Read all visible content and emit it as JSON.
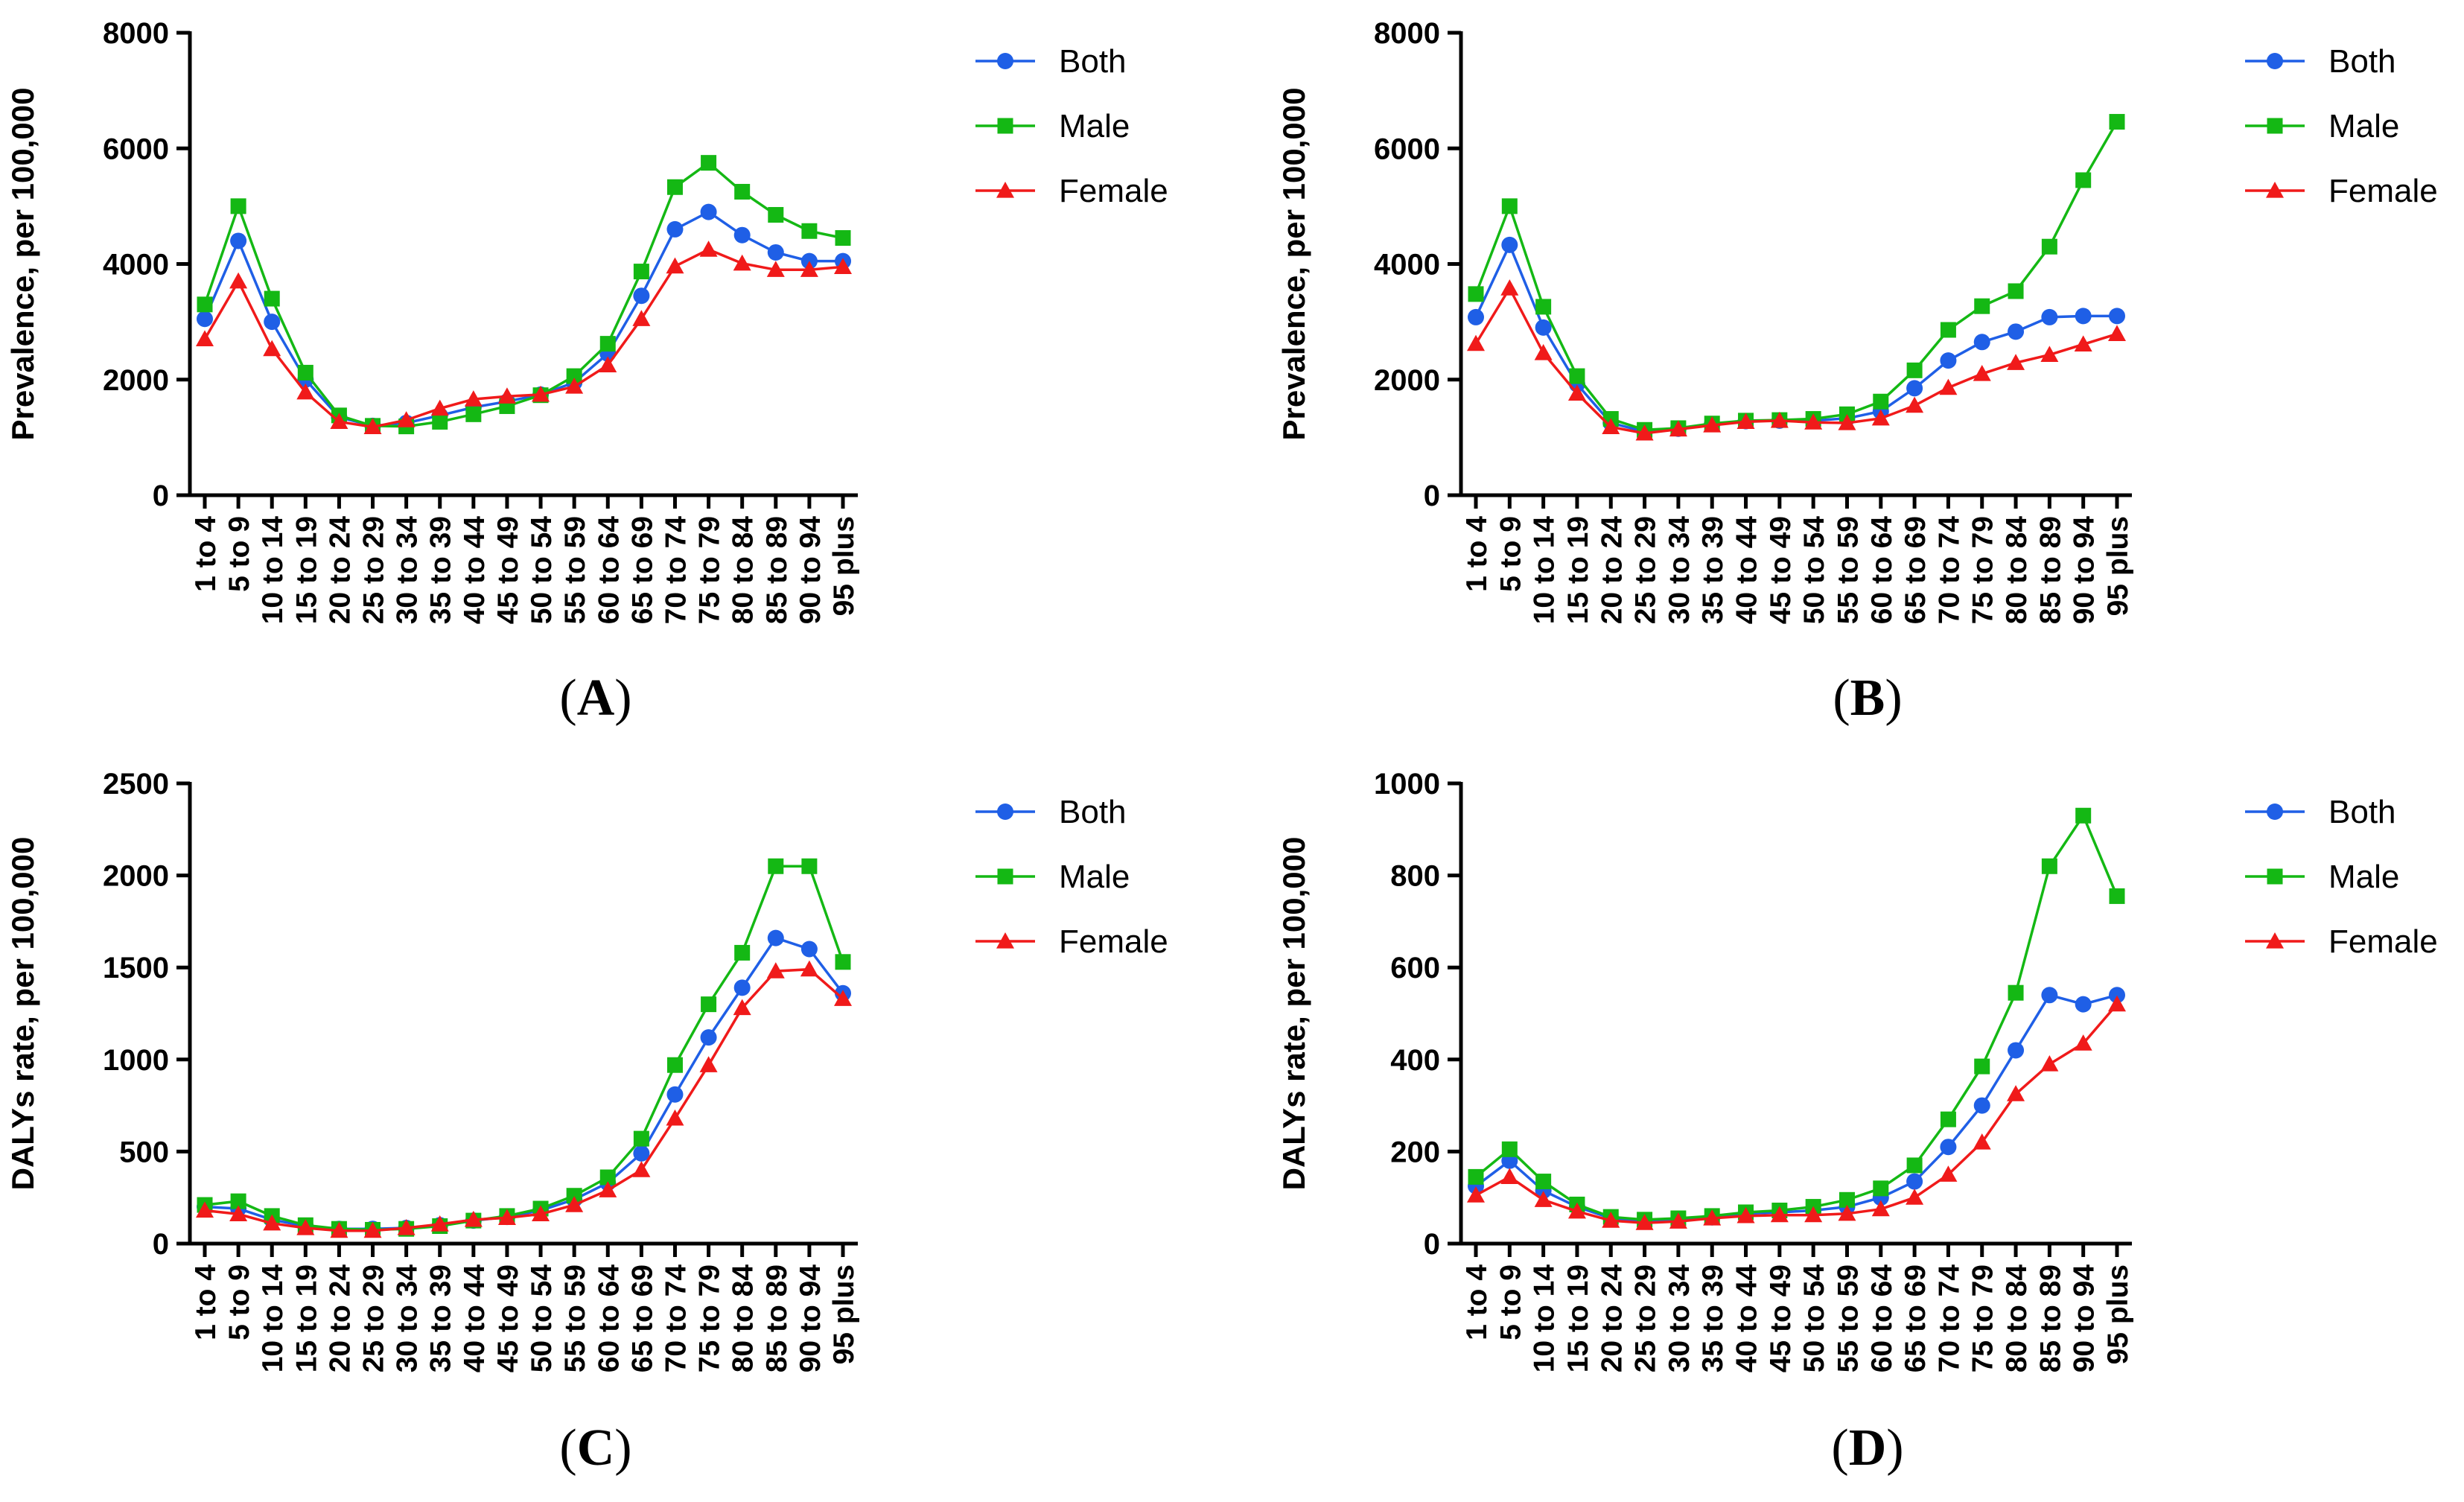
{
  "chart_data": [
    {
      "type": "line",
      "panel": "A",
      "ylabel": "Prevalence, per 100,000",
      "ylim": [
        0,
        8000
      ],
      "yticks": [
        0,
        2000,
        4000,
        6000,
        8000
      ],
      "legend_position": "right",
      "categories": [
        "1 to 4",
        "5 to 9",
        "10 to 14",
        "15 to 19",
        "20 to 24",
        "25 to 29",
        "30 to 34",
        "35 to 39",
        "40 to 44",
        "45 to 49",
        "50 to 54",
        "55 to 59",
        "60 to 64",
        "65 to 69",
        "70 to 74",
        "75 to 79",
        "80 to 84",
        "85 to 89",
        "90 to 94",
        "95 plus"
      ],
      "series": [
        {
          "name": "Both",
          "color": "#1f5fe6",
          "marker": "circle",
          "values": [
            3050,
            4400,
            3000,
            2000,
            1350,
            1200,
            1250,
            1380,
            1520,
            1620,
            1740,
            1950,
            2450,
            3450,
            4600,
            4900,
            4500,
            4200,
            4050,
            4050
          ]
        },
        {
          "name": "Male",
          "color": "#14b814",
          "marker": "square",
          "values": [
            3300,
            5000,
            3400,
            2120,
            1380,
            1200,
            1190,
            1270,
            1400,
            1540,
            1730,
            2060,
            2620,
            3870,
            5330,
            5750,
            5250,
            4850,
            4570,
            4450
          ]
        },
        {
          "name": "Female",
          "color": "#f01a1a",
          "marker": "triangle",
          "values": [
            2700,
            3700,
            2530,
            1780,
            1270,
            1180,
            1300,
            1500,
            1660,
            1710,
            1740,
            1880,
            2250,
            3050,
            3960,
            4250,
            4010,
            3900,
            3900,
            3950
          ]
        }
      ]
    },
    {
      "type": "line",
      "panel": "B",
      "ylabel": "Prevalence, per 100,000",
      "ylim": [
        0,
        8000
      ],
      "yticks": [
        0,
        2000,
        4000,
        6000,
        8000
      ],
      "legend_position": "right",
      "categories": [
        "1 to 4",
        "5 to 9",
        "10 to 14",
        "15 to 19",
        "20 to 24",
        "25 to 29",
        "30 to 34",
        "35 to 39",
        "40 to 44",
        "45 to 49",
        "50 to 54",
        "55 to 59",
        "60 to 64",
        "65 to 69",
        "70 to 74",
        "75 to 79",
        "80 to 84",
        "85 to 89",
        "90 to 94",
        "95 plus"
      ],
      "series": [
        {
          "name": "Both",
          "color": "#1f5fe6",
          "marker": "circle",
          "values": [
            3080,
            4330,
            2900,
            1920,
            1250,
            1100,
            1150,
            1230,
            1280,
            1290,
            1290,
            1330,
            1450,
            1850,
            2330,
            2650,
            2830,
            3080,
            3100,
            3100
          ]
        },
        {
          "name": "Male",
          "color": "#14b814",
          "marker": "square",
          "values": [
            3480,
            5000,
            3260,
            2060,
            1320,
            1130,
            1160,
            1240,
            1290,
            1300,
            1320,
            1400,
            1620,
            2160,
            2860,
            3270,
            3530,
            4300,
            5450,
            6460
          ]
        },
        {
          "name": "Female",
          "color": "#f01a1a",
          "marker": "triangle",
          "values": [
            2620,
            3580,
            2460,
            1760,
            1180,
            1070,
            1140,
            1210,
            1270,
            1290,
            1260,
            1250,
            1330,
            1550,
            1860,
            2100,
            2290,
            2430,
            2610,
            2790
          ]
        }
      ]
    },
    {
      "type": "line",
      "panel": "C",
      "ylabel": "DALYs rate, per 100,000",
      "ylim": [
        0,
        2500
      ],
      "yticks": [
        0,
        500,
        1000,
        1500,
        2000,
        2500
      ],
      "legend_position": "right",
      "categories": [
        "1 to 4",
        "5 to 9",
        "10 to 14",
        "15 to 19",
        "20 to 24",
        "25 to 29",
        "30 to 34",
        "35 to 39",
        "40 to 44",
        "45 to 49",
        "50 to 54",
        "55 to 59",
        "60 to 64",
        "65 to 69",
        "70 to 74",
        "75 to 79",
        "80 to 84",
        "85 to 89",
        "90 to 94",
        "95 plus"
      ],
      "series": [
        {
          "name": "Both",
          "color": "#1f5fe6",
          "marker": "circle",
          "values": [
            200,
            190,
            130,
            95,
            80,
            80,
            85,
            100,
            125,
            145,
            180,
            240,
            330,
            490,
            810,
            1120,
            1390,
            1660,
            1600,
            1360
          ]
        },
        {
          "name": "Male",
          "color": "#14b814",
          "marker": "square",
          "values": [
            210,
            230,
            150,
            100,
            80,
            75,
            80,
            95,
            125,
            150,
            190,
            260,
            360,
            570,
            970,
            1300,
            1580,
            2050,
            2050,
            1530
          ]
        },
        {
          "name": "Female",
          "color": "#f01a1a",
          "marker": "triangle",
          "values": [
            180,
            160,
            110,
            85,
            70,
            70,
            85,
            105,
            130,
            140,
            160,
            210,
            290,
            400,
            680,
            970,
            1280,
            1480,
            1490,
            1330
          ]
        }
      ]
    },
    {
      "type": "line",
      "panel": "D",
      "ylabel": "DALYs rate, per 100,000",
      "ylim": [
        0,
        1000
      ],
      "yticks": [
        0,
        200,
        400,
        600,
        800,
        1000
      ],
      "legend_position": "right",
      "categories": [
        "1 to 4",
        "5 to 9",
        "10 to 14",
        "15 to 19",
        "20 to 24",
        "25 to 29",
        "30 to 34",
        "35 to 39",
        "40 to 44",
        "45 to 49",
        "50 to 54",
        "55 to 59",
        "60 to 64",
        "65 to 69",
        "70 to 74",
        "75 to 79",
        "80 to 84",
        "85 to 89",
        "90 to 94",
        "95 plus"
      ],
      "series": [
        {
          "name": "Both",
          "color": "#1f5fe6",
          "marker": "circle",
          "values": [
            125,
            180,
            115,
            80,
            55,
            50,
            52,
            57,
            65,
            68,
            72,
            80,
            100,
            135,
            210,
            300,
            420,
            540,
            520,
            540
          ]
        },
        {
          "name": "Male",
          "color": "#14b814",
          "marker": "square",
          "values": [
            145,
            205,
            135,
            85,
            58,
            52,
            55,
            60,
            68,
            72,
            80,
            95,
            120,
            170,
            270,
            385,
            545,
            820,
            930,
            755
          ]
        },
        {
          "name": "Female",
          "color": "#f01a1a",
          "marker": "triangle",
          "values": [
            105,
            145,
            95,
            70,
            50,
            45,
            48,
            55,
            60,
            62,
            62,
            65,
            75,
            100,
            150,
            220,
            325,
            390,
            435,
            520
          ]
        }
      ]
    }
  ]
}
